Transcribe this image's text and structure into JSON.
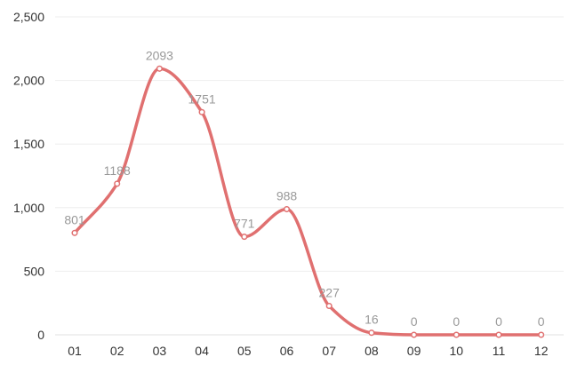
{
  "chart_data": {
    "type": "line",
    "smooth": true,
    "categories": [
      "01",
      "02",
      "03",
      "04",
      "05",
      "06",
      "07",
      "08",
      "09",
      "10",
      "11",
      "12"
    ],
    "series": [
      {
        "values": [
          801,
          1188,
          2093,
          1751,
          771,
          988,
          227,
          16,
          0,
          0,
          0,
          0
        ]
      }
    ],
    "data_labels": [
      "801",
      "1188",
      "2093",
      "1751",
      "771",
      "988",
      "227",
      "16",
      "0",
      "0",
      "0",
      "0"
    ],
    "y_ticks": [
      0,
      500,
      1000,
      1500,
      2000,
      2500
    ],
    "y_tick_labels": [
      "0",
      "500",
      "1,000",
      "1,500",
      "2,000",
      "2,500"
    ],
    "ylim": [
      0,
      2500
    ],
    "grid": true,
    "line_color": "#e07070",
    "marker_fill": "#ffffff",
    "title": "",
    "xlabel": "",
    "ylabel": ""
  }
}
